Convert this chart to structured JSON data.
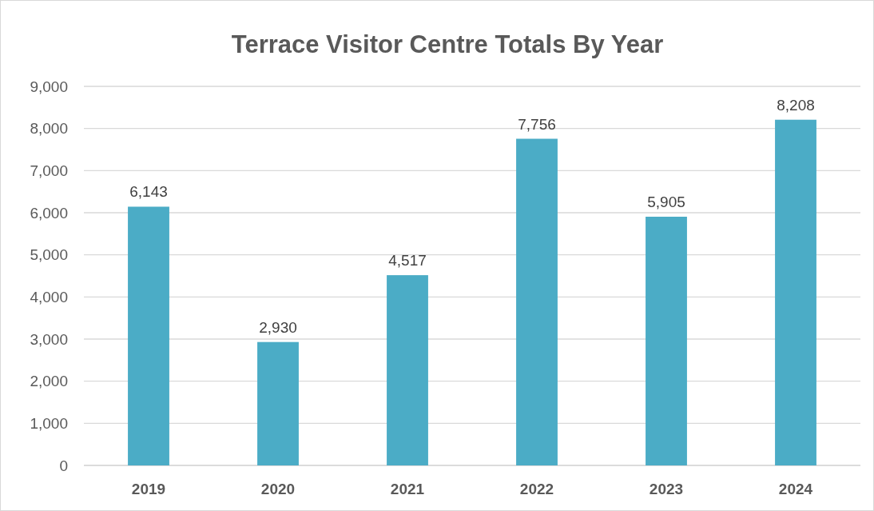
{
  "chart_data": {
    "type": "bar",
    "title": "Terrace Visitor Centre Totals By Year",
    "categories": [
      "2019",
      "2020",
      "2021",
      "2022",
      "2023",
      "2024"
    ],
    "values": [
      6143,
      2930,
      4517,
      7756,
      5905,
      8208
    ],
    "color": "#4bacc6",
    "ylim": [
      0,
      9000
    ],
    "yticks": [
      {
        "value": 0,
        "label": "0"
      },
      {
        "value": 1000,
        "label": "1,000"
      },
      {
        "value": 2000,
        "label": "2,000"
      },
      {
        "value": 3000,
        "label": "3,000"
      },
      {
        "value": 4000,
        "label": "4,000"
      },
      {
        "value": 5000,
        "label": "5,000"
      },
      {
        "value": 6000,
        "label": "6,000"
      },
      {
        "value": 7000,
        "label": "7,000"
      },
      {
        "value": 8000,
        "label": "8,000"
      },
      {
        "value": 9000,
        "label": "9,000"
      }
    ],
    "grid": "y",
    "value_labels": [
      "6,143",
      "2,930",
      "4,517",
      "7,756",
      "5,905",
      "8,208"
    ]
  }
}
